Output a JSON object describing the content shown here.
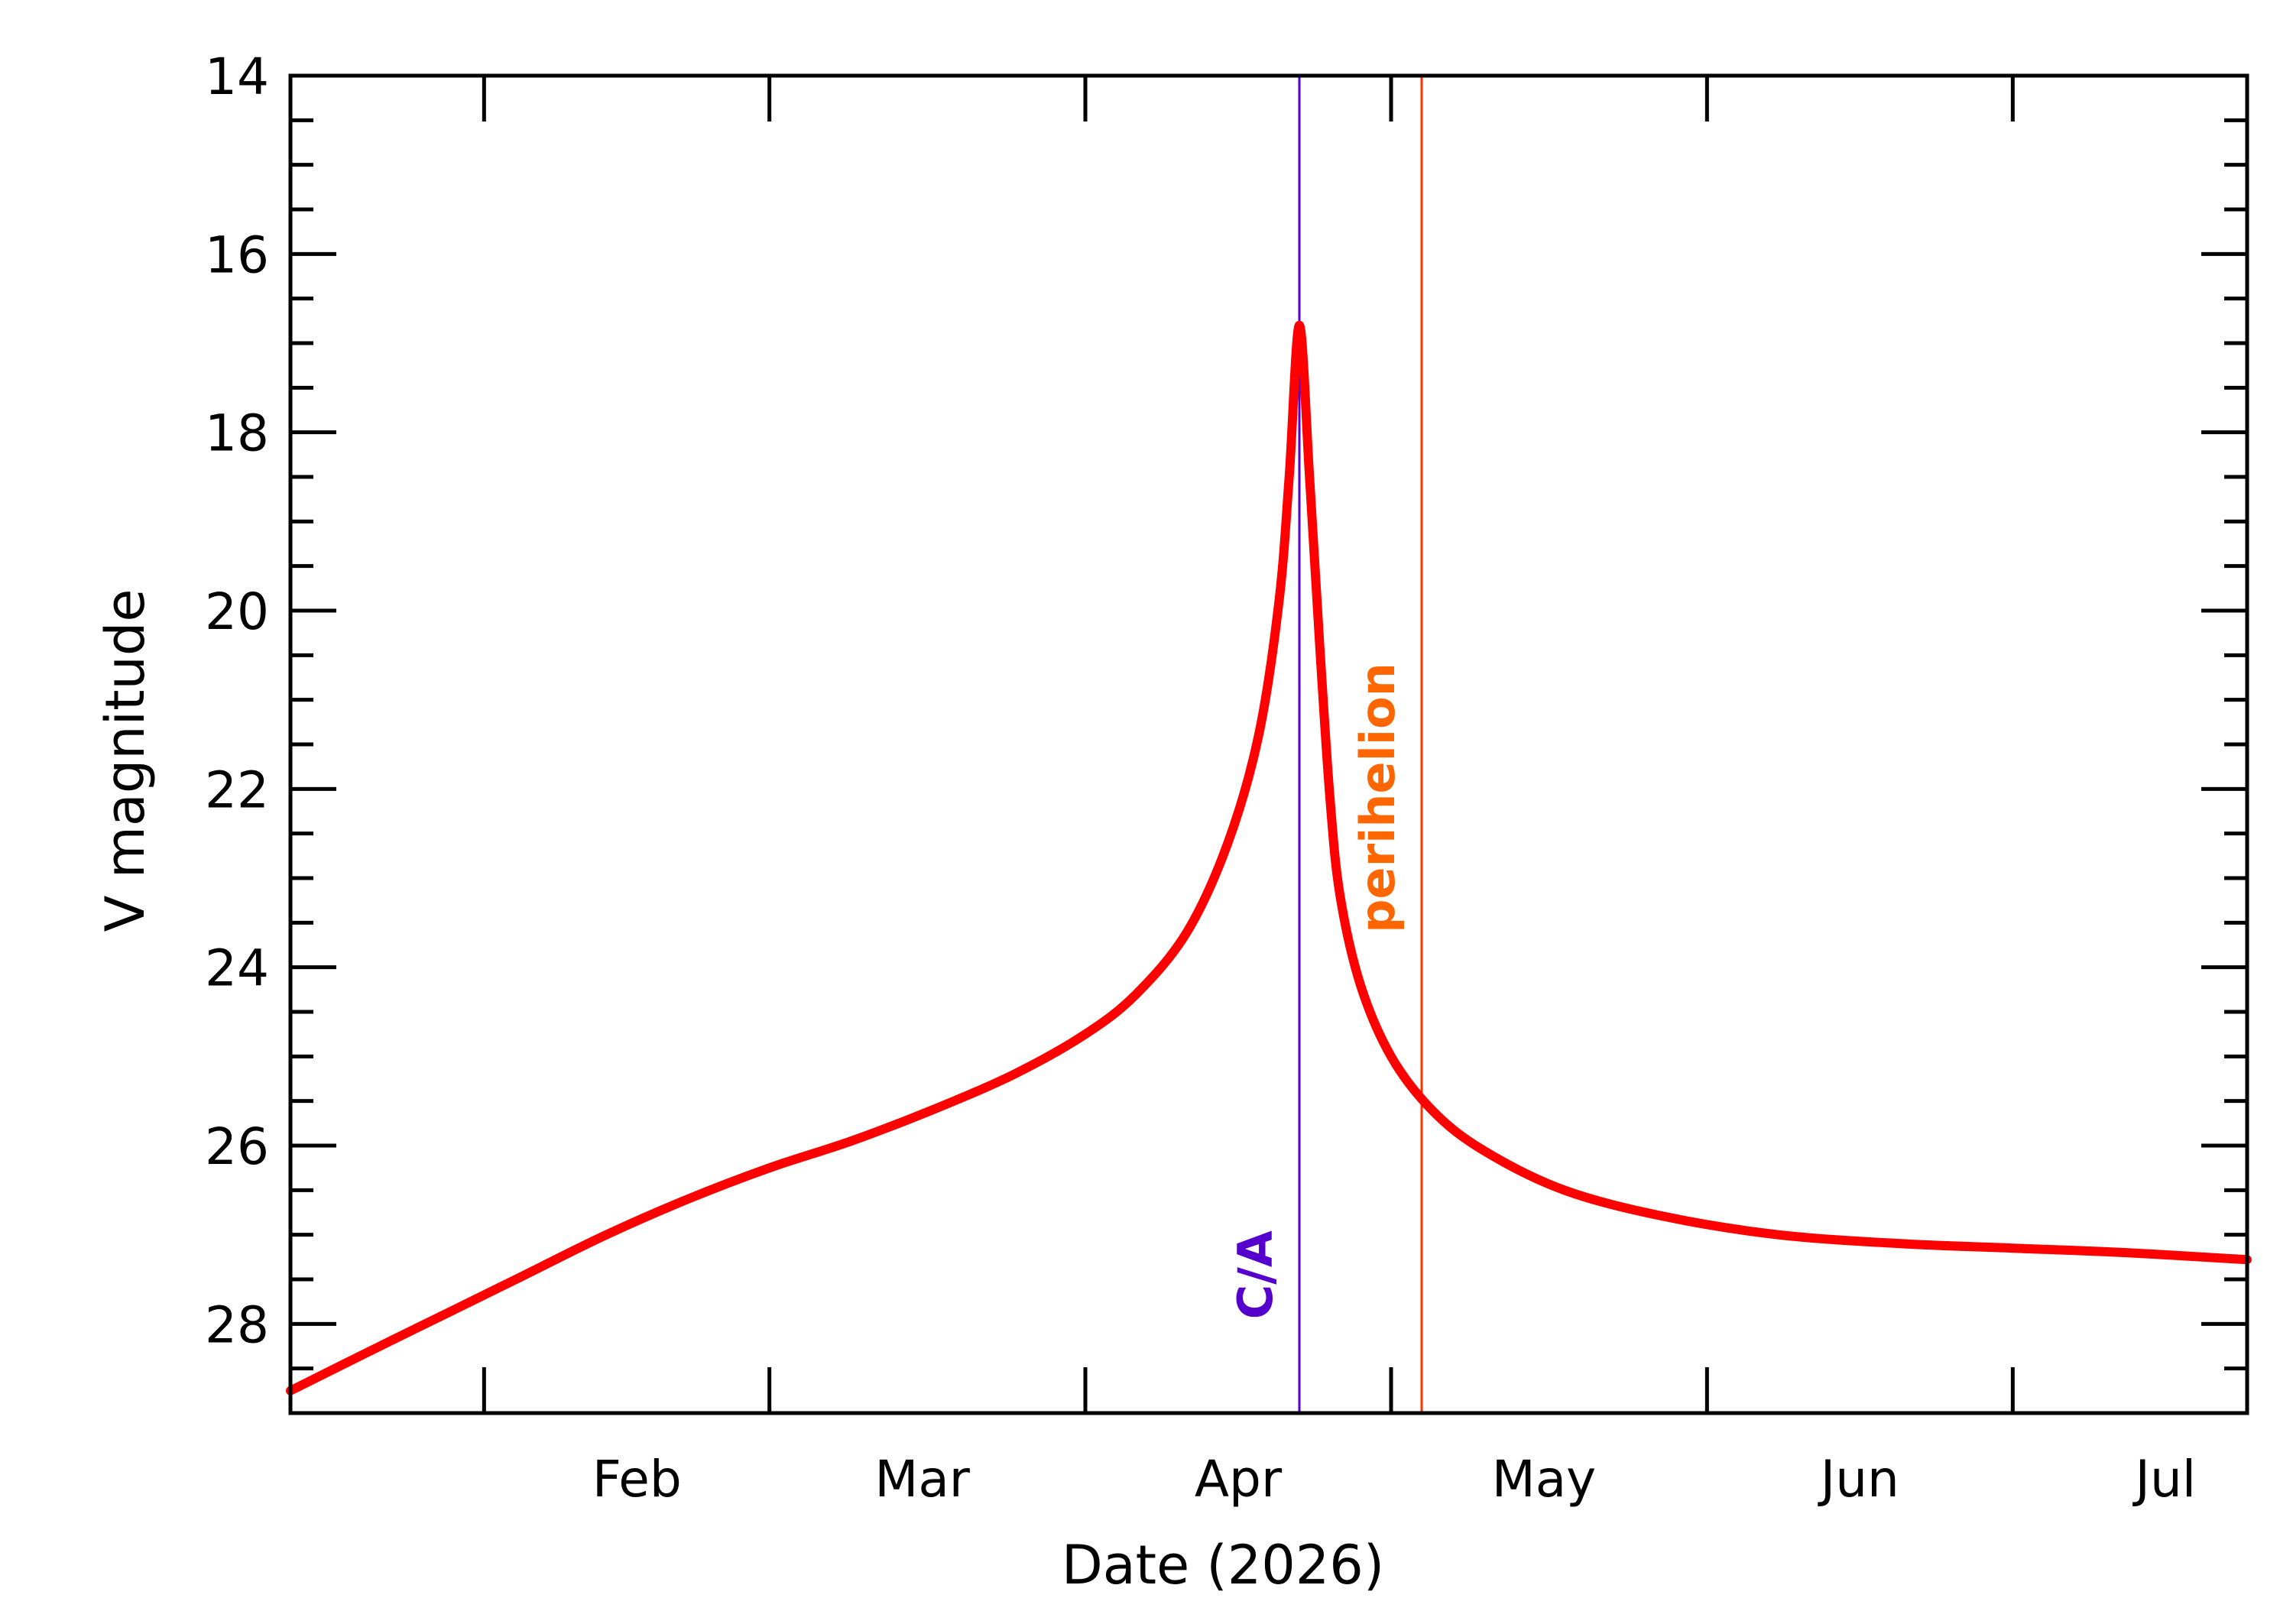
{
  "chart_data": {
    "type": "line",
    "title": "",
    "xlabel": "Date (2026)",
    "ylabel": "V magnitude",
    "x_unit": "date",
    "xlim": [
      "2026-01-13",
      "2026-07-24"
    ],
    "ylim": [
      29.0,
      14.0
    ],
    "y_inverted": true,
    "grid": false,
    "legend": "none",
    "x_ticks": [
      {
        "date": "2026-02-01",
        "label": "Feb"
      },
      {
        "date": "2026-03-01",
        "label": "Mar"
      },
      {
        "date": "2026-04-01",
        "label": "Apr"
      },
      {
        "date": "2026-05-01",
        "label": "May"
      },
      {
        "date": "2026-06-01",
        "label": "Jun"
      },
      {
        "date": "2026-07-01",
        "label": "Jul"
      }
    ],
    "y_ticks": [
      14,
      16,
      18,
      20,
      22,
      24,
      26,
      28
    ],
    "series": [
      {
        "color": "#ff0000",
        "points": [
          [
            "2026-01-13",
            28.75
          ],
          [
            "2026-01-20",
            28.35
          ],
          [
            "2026-01-28",
            27.9
          ],
          [
            "2026-02-05",
            27.45
          ],
          [
            "2026-02-13",
            27.0
          ],
          [
            "2026-02-21",
            26.6
          ],
          [
            "2026-03-01",
            26.25
          ],
          [
            "2026-03-09",
            25.95
          ],
          [
            "2026-03-17",
            25.6
          ],
          [
            "2026-03-25",
            25.2
          ],
          [
            "2026-04-01",
            24.75
          ],
          [
            "2026-04-06",
            24.3
          ],
          [
            "2026-04-11",
            23.6
          ],
          [
            "2026-04-15",
            22.6
          ],
          [
            "2026-04-18",
            21.4
          ],
          [
            "2026-04-20",
            19.9
          ],
          [
            "2026-04-21",
            18.5
          ],
          [
            "2026-04-22",
            16.8
          ],
          [
            "2026-04-23",
            18.5
          ],
          [
            "2026-04-24",
            20.4
          ],
          [
            "2026-04-25",
            22.1
          ],
          [
            "2026-04-26",
            23.2
          ],
          [
            "2026-04-28",
            24.2
          ],
          [
            "2026-05-01",
            25.0
          ],
          [
            "2026-05-05",
            25.6
          ],
          [
            "2026-05-10",
            26.05
          ],
          [
            "2026-05-18",
            26.5
          ],
          [
            "2026-05-28",
            26.8
          ],
          [
            "2026-06-08",
            27.0
          ],
          [
            "2026-06-20",
            27.1
          ],
          [
            "2026-07-01",
            27.15
          ],
          [
            "2026-07-12",
            27.2
          ],
          [
            "2026-07-24",
            27.28
          ]
        ]
      }
    ],
    "annotations": [
      {
        "label": "C/A",
        "date": "2026-04-22",
        "color": "#5500cc"
      },
      {
        "label": "perihelion",
        "date": "2026-05-04",
        "color": "#ff6600",
        "line_color": "#ff3300"
      }
    ]
  }
}
